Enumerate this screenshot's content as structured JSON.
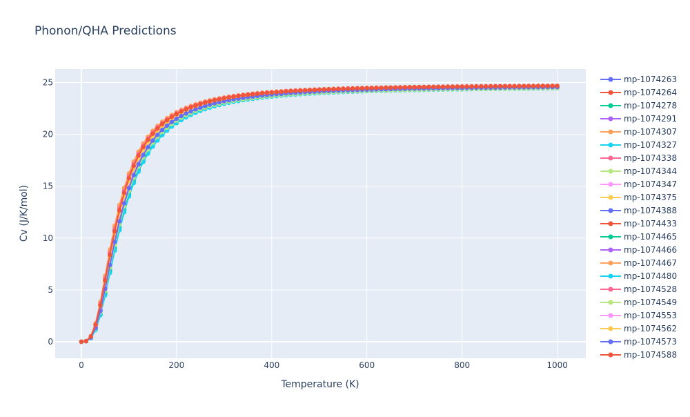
{
  "chart_data": {
    "type": "line",
    "title": "Phonon/QHA Predictions",
    "xlabel": "Temperature (K)",
    "ylabel": "Cv (J/K/mol)",
    "xlim": [
      -55,
      1060
    ],
    "ylim": [
      -1.6,
      26.3
    ],
    "x_ticks": [
      0,
      200,
      400,
      600,
      800,
      1000
    ],
    "y_ticks": [
      0,
      5,
      10,
      15,
      20,
      25
    ],
    "x_tick_labels": [
      "0",
      "200",
      "400",
      "600",
      "800",
      "1000"
    ],
    "y_tick_labels": [
      "0",
      "5",
      "10",
      "15",
      "20",
      "25"
    ],
    "grid": true,
    "legend_position": "right",
    "plot_bgcolor": "#e5ecf6",
    "x": [
      0,
      10,
      20,
      30,
      40,
      50,
      60,
      70,
      80,
      90,
      100,
      110,
      120,
      130,
      140,
      150,
      160,
      170,
      180,
      190,
      200,
      210,
      220,
      230,
      240,
      250,
      260,
      270,
      280,
      290,
      300,
      310,
      320,
      330,
      340,
      350,
      360,
      370,
      380,
      390,
      400,
      410,
      420,
      430,
      440,
      450,
      460,
      470,
      480,
      490,
      500,
      510,
      520,
      530,
      540,
      550,
      560,
      570,
      580,
      590,
      600,
      610,
      620,
      630,
      640,
      650,
      660,
      670,
      680,
      690,
      700,
      710,
      720,
      730,
      740,
      750,
      760,
      770,
      780,
      790,
      800,
      810,
      820,
      830,
      840,
      850,
      860,
      870,
      880,
      890,
      900,
      910,
      920,
      930,
      940,
      950,
      960,
      970,
      980,
      990,
      1000
    ],
    "series": [
      {
        "name": "mp-1074263",
        "color": "#636efa",
        "theta": 335,
        "plateau": 24.7
      },
      {
        "name": "mp-1074264",
        "color": "#EF553B",
        "theta": 320,
        "plateau": 24.8
      },
      {
        "name": "mp-1074278",
        "color": "#00cc96",
        "theta": 350,
        "plateau": 24.6
      },
      {
        "name": "mp-1074291",
        "color": "#ab63fa",
        "theta": 330,
        "plateau": 24.7
      },
      {
        "name": "mp-1074307",
        "color": "#FFA15A",
        "theta": 305,
        "plateau": 24.8
      },
      {
        "name": "mp-1074327",
        "color": "#19d3f3",
        "theta": 355,
        "plateau": 24.6
      },
      {
        "name": "mp-1074338",
        "color": "#FF6692",
        "theta": 315,
        "plateau": 24.8
      },
      {
        "name": "mp-1074344",
        "color": "#B6E880",
        "theta": 345,
        "plateau": 24.6
      },
      {
        "name": "mp-1074347",
        "color": "#FF97FF",
        "theta": 325,
        "plateau": 24.7
      },
      {
        "name": "mp-1074375",
        "color": "#FECB52",
        "theta": 320,
        "plateau": 24.7
      },
      {
        "name": "mp-1074388",
        "color": "#636efa",
        "theta": 340,
        "plateau": 24.7
      },
      {
        "name": "mp-1074433",
        "color": "#EF553B",
        "theta": 318,
        "plateau": 24.8
      },
      {
        "name": "mp-1074465",
        "color": "#00cc96",
        "theta": 352,
        "plateau": 24.6
      },
      {
        "name": "mp-1074466",
        "color": "#ab63fa",
        "theta": 332,
        "plateau": 24.7
      },
      {
        "name": "mp-1074467",
        "color": "#FFA15A",
        "theta": 308,
        "plateau": 24.8
      },
      {
        "name": "mp-1074480",
        "color": "#19d3f3",
        "theta": 357,
        "plateau": 24.6
      },
      {
        "name": "mp-1074528",
        "color": "#FF6692",
        "theta": 312,
        "plateau": 24.8
      },
      {
        "name": "mp-1074549",
        "color": "#B6E880",
        "theta": 343,
        "plateau": 24.6
      },
      {
        "name": "mp-1074553",
        "color": "#FF97FF",
        "theta": 327,
        "plateau": 24.7
      },
      {
        "name": "mp-1074562",
        "color": "#FECB52",
        "theta": 322,
        "plateau": 24.7
      },
      {
        "name": "mp-1074573",
        "color": "#636efa",
        "theta": 338,
        "plateau": 24.7
      },
      {
        "name": "mp-1074588",
        "color": "#EF553B",
        "theta": 316,
        "plateau": 24.8
      }
    ]
  }
}
